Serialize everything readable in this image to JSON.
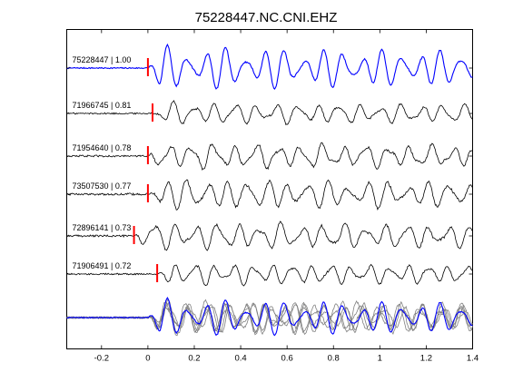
{
  "chart_data": {
    "type": "line",
    "title": "75228447.NC.CNI.EHZ",
    "xlabel": "",
    "ylabel": "",
    "xlim": [
      -0.35,
      1.4
    ],
    "x_ticks": [
      -0.2,
      0,
      0.2,
      0.4,
      0.6,
      0.8,
      1,
      1.2,
      1.4
    ],
    "x_tick_labels": [
      "-0.2",
      "0",
      "0.2",
      "0.4",
      "0.6",
      "0.8",
      "1",
      "1.2",
      "1.4"
    ],
    "y_axis_ticks_shown": false,
    "grid": false,
    "colors": {
      "reference": "#0000ff",
      "trace": "#000000",
      "stack": "#808080",
      "pick": "#ff0000"
    },
    "traces": [
      {
        "id": "75228447",
        "cc": "1.00",
        "label": "75228447 | 1.00",
        "pick_time": 0.0,
        "reference": true
      },
      {
        "id": "71966745",
        "cc": "0.81",
        "label": "71966745 | 0.81",
        "pick_time": 0.02
      },
      {
        "id": "71954640",
        "cc": "0.78",
        "label": "71954640 | 0.78",
        "pick_time": 0.0
      },
      {
        "id": "73507530",
        "cc": "0.77",
        "label": "73507530 | 0.77",
        "pick_time": 0.0
      },
      {
        "id": "72896141",
        "cc": "0.73",
        "label": "72896141 | 0.73",
        "pick_time": -0.06
      },
      {
        "id": "71906491",
        "cc": "0.72",
        "label": "71906491 | 0.72",
        "pick_time": 0.04
      }
    ],
    "overlay": {
      "description_shown": false,
      "series_count": 6
    }
  }
}
